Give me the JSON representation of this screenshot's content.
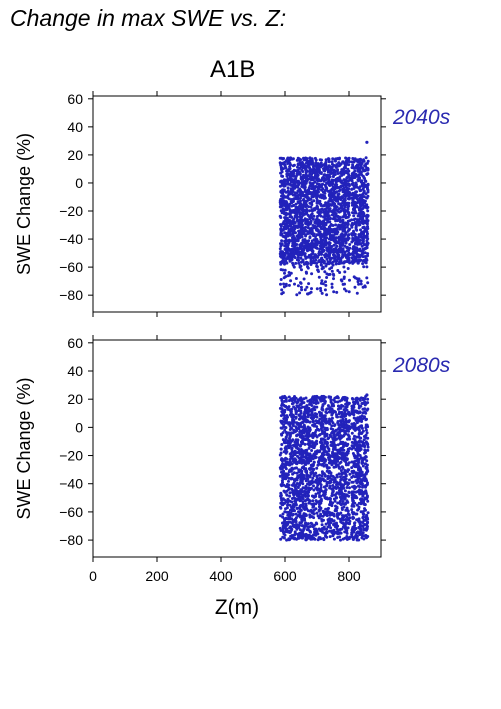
{
  "page": {
    "title": "Change in max SWE vs. Z:"
  },
  "chart_data": {
    "type": "scatter",
    "scenario": "A1B",
    "xlabel": "Z(m)",
    "xlim": [
      0,
      900
    ],
    "xticks": [
      0,
      200,
      400,
      600,
      800
    ],
    "panels": [
      {
        "period": "2040s",
        "ylabel": "SWE Change (%)",
        "ylim": [
          -92,
          62
        ],
        "yticks": [
          60,
          40,
          20,
          0,
          -20,
          -40,
          -60,
          -80
        ],
        "point_color": "#2222bb",
        "x_range": [
          585,
          860
        ],
        "y_range_main": [
          -58,
          18
        ],
        "y_outliers_low": -80,
        "y_outliers_high": 29
      },
      {
        "period": "2080s",
        "ylabel": "SWE Change (%)",
        "ylim": [
          -92,
          62
        ],
        "yticks": [
          60,
          40,
          20,
          0,
          -20,
          -40,
          -60,
          -80
        ],
        "point_color": "#2222bb",
        "x_range": [
          585,
          860
        ],
        "y_range_main": [
          -75,
          22
        ],
        "y_outliers_low": -80,
        "y_outliers_high": 23
      }
    ]
  }
}
